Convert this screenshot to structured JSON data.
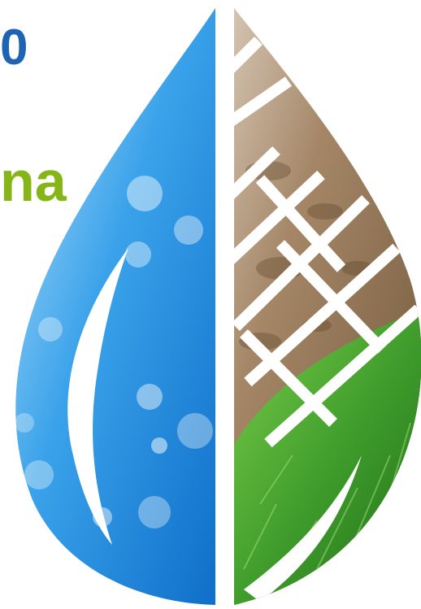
{
  "headline_fragments": {
    "line1": "0",
    "line2": "na"
  },
  "palette": {
    "headline_blue": "#1e63b4",
    "headline_green": "#86b517",
    "water_blue": "#1f8fe3",
    "soil_brown": "#8a7058",
    "grass_green": "#3f9b2c"
  },
  "artwork": {
    "segments": [
      "water",
      "soil",
      "grass"
    ]
  }
}
